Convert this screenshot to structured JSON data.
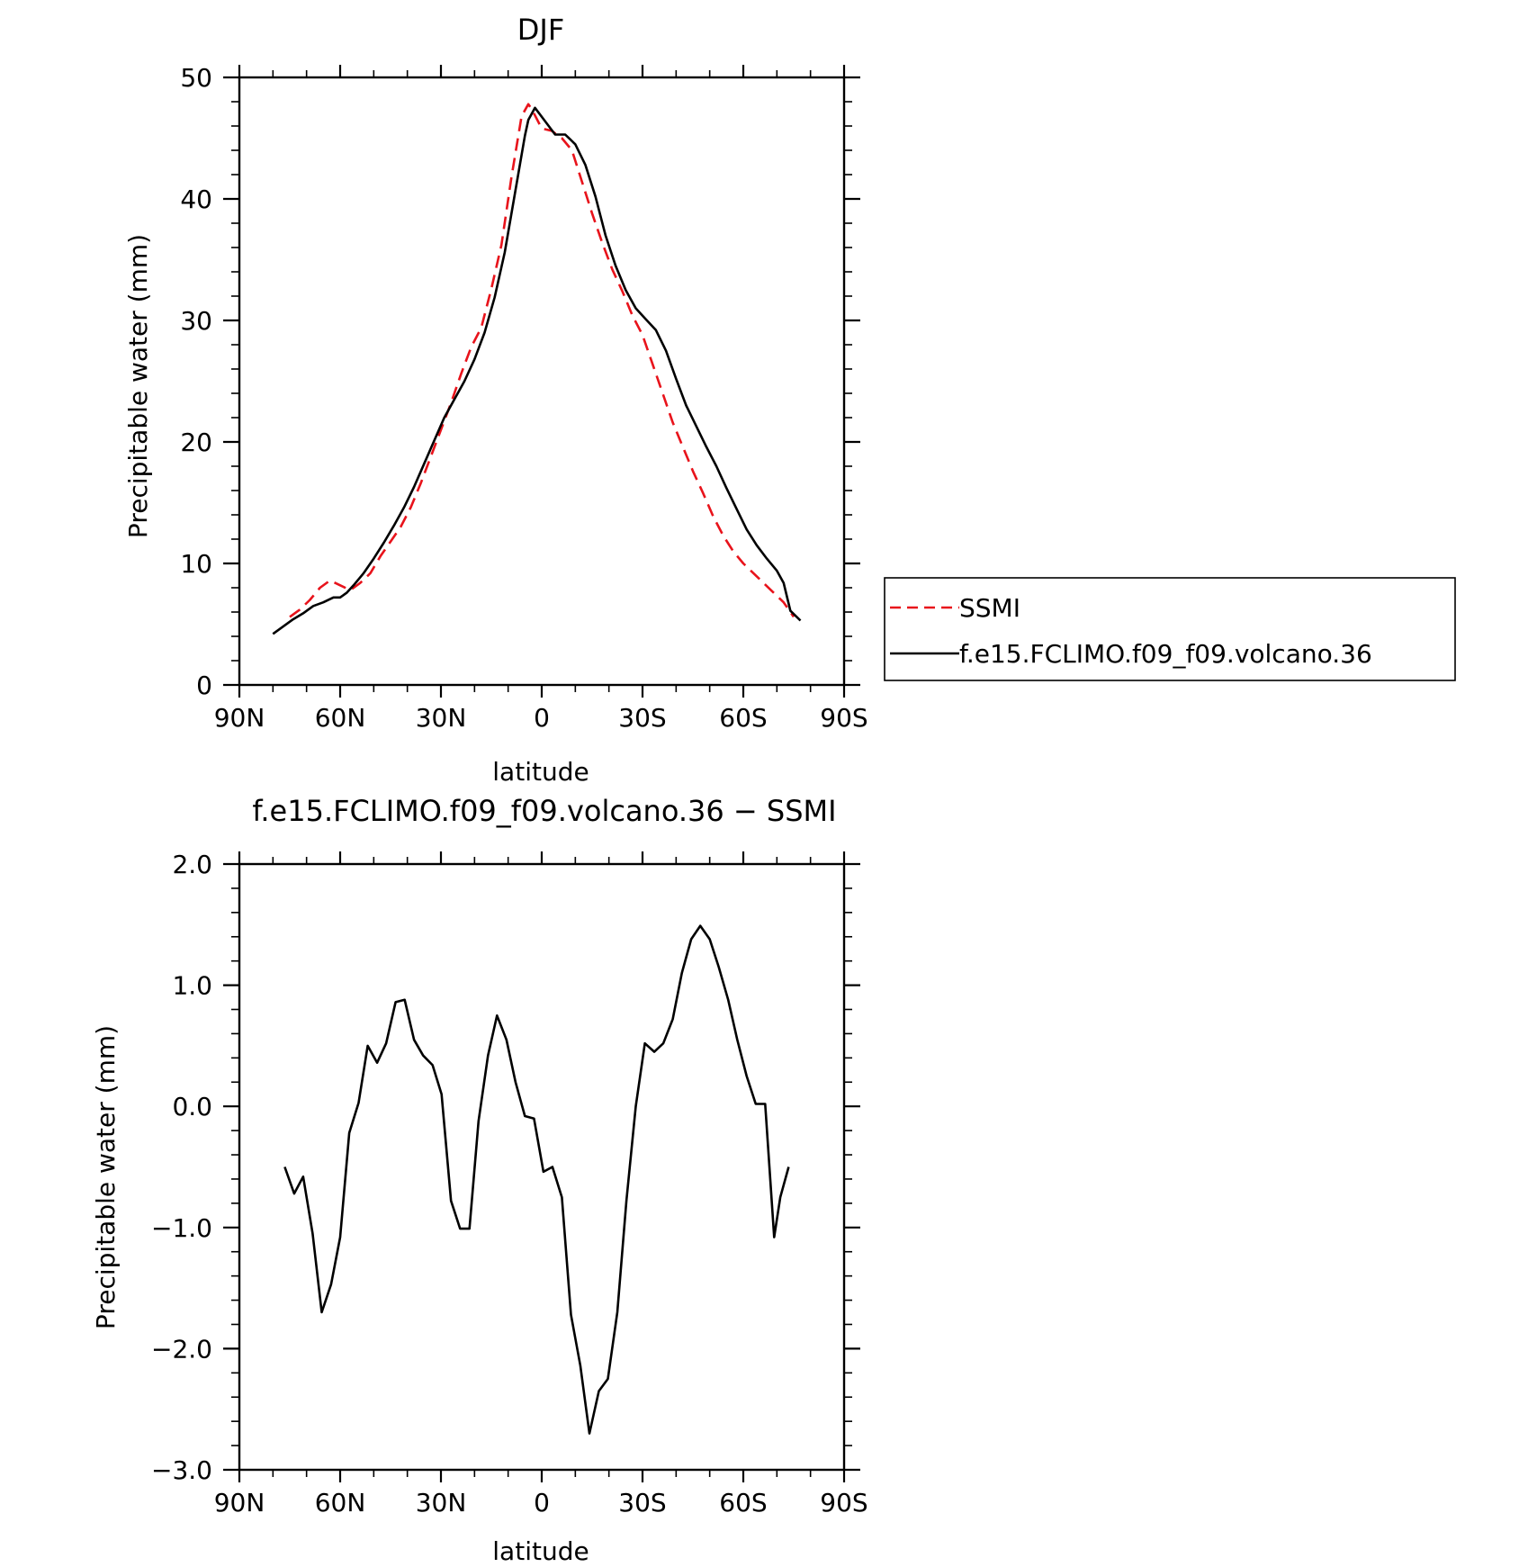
{
  "chart_data": [
    {
      "type": "line",
      "title": "DJF",
      "xlabel": "latitude",
      "ylabel": "Precipitable water (mm)",
      "xlim": [
        -90,
        90
      ],
      "ylim": [
        0,
        50
      ],
      "x_ticks": [
        {
          "value": -90,
          "label": "90N"
        },
        {
          "value": -60,
          "label": "60N"
        },
        {
          "value": -30,
          "label": "30N"
        },
        {
          "value": 0,
          "label": "0"
        },
        {
          "value": 30,
          "label": "30S"
        },
        {
          "value": 60,
          "label": "60S"
        },
        {
          "value": 90,
          "label": "90S"
        }
      ],
      "y_ticks": [
        {
          "value": 0,
          "label": "0"
        },
        {
          "value": 10,
          "label": "10"
        },
        {
          "value": 20,
          "label": "20"
        },
        {
          "value": 30,
          "label": "30"
        },
        {
          "value": 40,
          "label": "40"
        },
        {
          "value": 50,
          "label": "50"
        }
      ],
      "legend_position": "right",
      "series": [
        {
          "name": "SSMI",
          "color": "#e8131b",
          "dash": "dashed",
          "x": [
            -75,
            -72,
            -69,
            -66,
            -63,
            -60,
            -57,
            -54,
            -51,
            -48,
            -45,
            -42,
            -39,
            -36,
            -33,
            -30,
            -27,
            -24,
            -21,
            -18,
            -15,
            -12,
            -9,
            -6,
            -4,
            -3,
            0,
            3,
            6,
            9,
            12,
            15,
            18,
            21,
            24,
            27,
            30,
            33,
            36,
            39,
            42,
            45,
            48,
            51,
            54,
            57,
            60,
            63,
            66,
            69,
            72,
            75
          ],
          "y": [
            5.6,
            6.2,
            7.0,
            8.0,
            8.6,
            8.2,
            7.8,
            8.4,
            9.2,
            10.6,
            11.8,
            13.0,
            14.6,
            16.6,
            18.8,
            21.0,
            23.2,
            25.6,
            27.8,
            29.4,
            32.6,
            36.2,
            41.8,
            46.8,
            47.8,
            47.4,
            45.8,
            45.6,
            45.0,
            44.0,
            41.4,
            38.8,
            36.4,
            34.2,
            32.4,
            30.4,
            28.8,
            26.4,
            24.0,
            21.6,
            19.6,
            17.6,
            15.8,
            13.9,
            12.3,
            11.0,
            10.0,
            9.2,
            8.4,
            7.6,
            6.8,
            5.6
          ]
        },
        {
          "name": "f.e15.FCLIMO.f09_f09.volcano.36",
          "color": "#000000",
          "dash": "solid",
          "x": [
            -80,
            -77,
            -74,
            -71,
            -68,
            -65,
            -62,
            -60,
            -58,
            -56,
            -53,
            -50,
            -47,
            -44,
            -41,
            -38,
            -35,
            -32,
            -29,
            -26,
            -23,
            -20,
            -17,
            -14,
            -11,
            -8,
            -5,
            -4,
            -2,
            1,
            4,
            7,
            10,
            13,
            16,
            19,
            22,
            25,
            28,
            31,
            34,
            37,
            40,
            43,
            46,
            49,
            52,
            55,
            58,
            61,
            64,
            67,
            70,
            72,
            74,
            77
          ],
          "y": [
            4.2,
            4.8,
            5.4,
            5.9,
            6.5,
            6.8,
            7.2,
            7.2,
            7.6,
            8.2,
            9.2,
            10.4,
            11.7,
            13.1,
            14.6,
            16.3,
            18.2,
            20.1,
            22.0,
            23.5,
            25.0,
            26.8,
            29.0,
            31.9,
            35.6,
            40.4,
            45.2,
            46.5,
            47.5,
            46.4,
            45.3,
            45.3,
            44.5,
            42.8,
            40.2,
            37.0,
            34.5,
            32.5,
            31.0,
            30.1,
            29.2,
            27.5,
            25.2,
            23.0,
            21.3,
            19.6,
            18.0,
            16.2,
            14.5,
            12.8,
            11.5,
            10.4,
            9.4,
            8.4,
            6.1,
            5.3
          ]
        }
      ]
    },
    {
      "type": "line",
      "title": "f.e15.FCLIMO.f09_f09.volcano.36 − SSMI",
      "xlabel": "latitude",
      "ylabel": "Precipitable water (mm)",
      "xlim": [
        -90,
        90
      ],
      "ylim": [
        -3.0,
        2.0
      ],
      "x_ticks": [
        {
          "value": -90,
          "label": "90N"
        },
        {
          "value": -60,
          "label": "60N"
        },
        {
          "value": -30,
          "label": "30N"
        },
        {
          "value": 0,
          "label": "0"
        },
        {
          "value": 30,
          "label": "30S"
        },
        {
          "value": 60,
          "label": "60S"
        },
        {
          "value": 90,
          "label": "90S"
        }
      ],
      "y_ticks": [
        {
          "value": -3.0,
          "label": "−3.0"
        },
        {
          "value": -2.0,
          "label": "−2.0"
        },
        {
          "value": -1.0,
          "label": "−1.0"
        },
        {
          "value": 0.0,
          "label": "0.0"
        },
        {
          "value": 1.0,
          "label": "1.0"
        },
        {
          "value": 2.0,
          "label": "2.0"
        }
      ],
      "series": [
        {
          "color": "#000000",
          "dash": "solid",
          "x": [
            -76.5,
            -73.7,
            -71.0,
            -68.2,
            -65.5,
            -62.7,
            -60.0,
            -57.3,
            -54.5,
            -51.8,
            -49.0,
            -46.3,
            -43.5,
            -40.8,
            -38.0,
            -35.3,
            -32.5,
            -29.8,
            -27.0,
            -24.3,
            -21.5,
            -18.8,
            -16.0,
            -13.3,
            -10.5,
            -7.8,
            -5.0,
            -2.3,
            0.5,
            3.2,
            6.0,
            8.7,
            11.5,
            14.2,
            17.0,
            19.7,
            22.5,
            25.2,
            28.0,
            30.7,
            33.5,
            36.2,
            39.0,
            41.7,
            44.5,
            47.2,
            50.0,
            52.7,
            55.5,
            58.2,
            61.0,
            63.7,
            66.5,
            69.2,
            71.0,
            73.5
          ],
          "y": [
            -0.5,
            -0.72,
            -0.58,
            -1.05,
            -1.7,
            -1.47,
            -1.08,
            -0.22,
            0.03,
            0.5,
            0.36,
            0.52,
            0.86,
            0.88,
            0.55,
            0.42,
            0.34,
            0.1,
            -0.78,
            -1.01,
            -1.01,
            -0.12,
            0.42,
            0.75,
            0.55,
            0.2,
            -0.08,
            -0.1,
            -0.54,
            -0.5,
            -0.75,
            -1.72,
            -2.14,
            -2.7,
            -2.35,
            -2.25,
            -1.7,
            -0.78,
            0.0,
            0.52,
            0.45,
            0.52,
            0.72,
            1.1,
            1.38,
            1.49,
            1.38,
            1.15,
            0.88,
            0.55,
            0.25,
            0.02,
            0.02,
            -1.08,
            -0.75,
            -0.5
          ]
        }
      ]
    }
  ]
}
